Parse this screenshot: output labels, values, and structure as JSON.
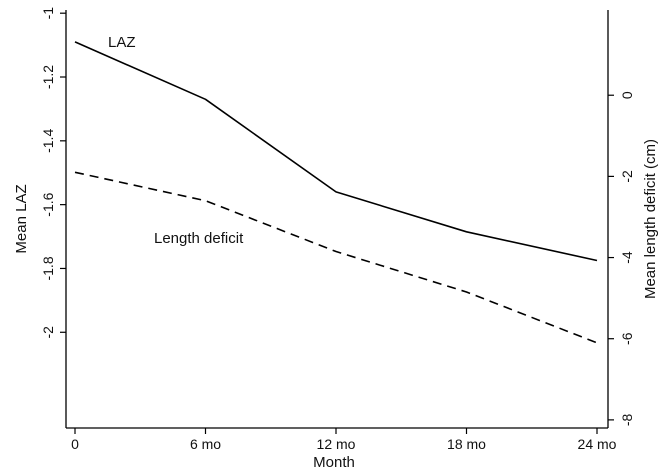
{
  "chart_data": {
    "type": "line",
    "title": "",
    "xlabel": "Month",
    "ylabel_left": "Mean LAZ",
    "ylabel_right": "Mean length deficit (cm)",
    "x": [
      0,
      6,
      12,
      18,
      24
    ],
    "x_tick_labels": [
      "0",
      "6 mo",
      "12 mo",
      "18 mo",
      "24 mo"
    ],
    "xlim": [
      0,
      24
    ],
    "ylim_left": [
      -2.3,
      -0.99
    ],
    "ylim_right": [
      -8.2,
      2.1
    ],
    "y_ticks_left": [
      -1,
      -1.2,
      -1.4,
      -1.6,
      -1.8,
      -2
    ],
    "y_ticks_right": [
      0,
      -2,
      -4,
      -6,
      -8
    ],
    "grid": false,
    "legend": "none",
    "series": [
      {
        "name": "LAZ",
        "axis": "left",
        "style": "solid",
        "color": "#000000",
        "values": [
          -1.09,
          -1.27,
          -1.56,
          -1.685,
          -1.775
        ]
      },
      {
        "name": "Length deficit",
        "axis": "right",
        "style": "dashed",
        "color": "#000000",
        "values": [
          -1.9,
          -2.6,
          -3.85,
          -4.85,
          -6.1
        ]
      }
    ]
  }
}
